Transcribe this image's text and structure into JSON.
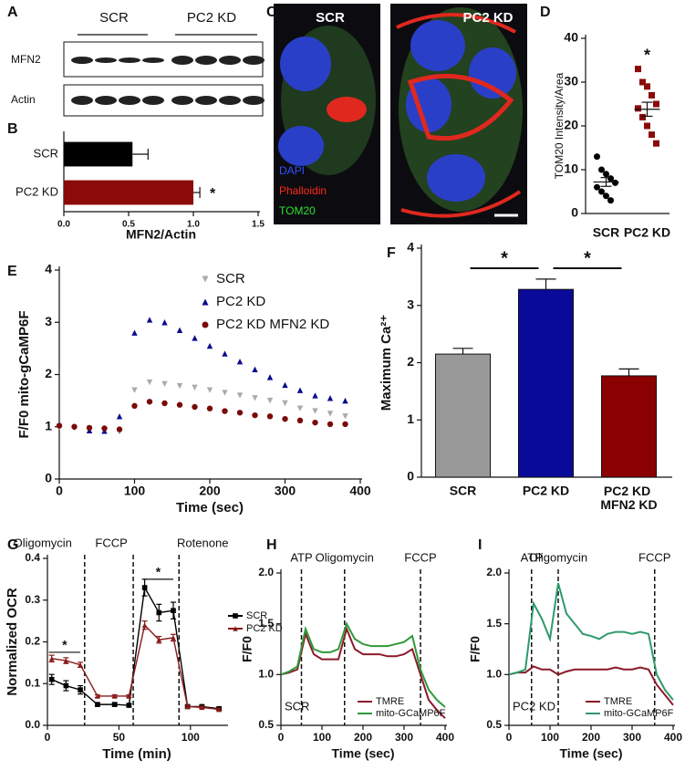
{
  "panel_labels": [
    "A",
    "B",
    "C",
    "D",
    "E",
    "F",
    "G",
    "H",
    "I"
  ],
  "blot": {
    "groups": [
      "SCR",
      "PC2 KD"
    ],
    "rows": [
      "MFN2",
      "Actin"
    ]
  },
  "micro": {
    "panels": [
      "SCR",
      "PC2 KD"
    ],
    "stains": [
      "DAPI",
      "Phalloidin",
      "TOM20"
    ]
  },
  "chart_data": [
    {
      "type": "hbar",
      "categories": [
        "SCR",
        "PC2 KD"
      ],
      "values": [
        0.53,
        1.0
      ],
      "errors": [
        0.12,
        0.05
      ],
      "colors": [
        "#000000",
        "#8b0a0a"
      ],
      "xlim": [
        0,
        1.5
      ],
      "xticks": [
        {
          "value": 0,
          "label": "0.0"
        },
        0.5,
        {
          "value": 1,
          "label": "1.0"
        },
        1.5
      ],
      "xlabel": "MFN2/Actin",
      "annotations": [
        "*"
      ]
    },
    {
      "type": "strip",
      "categories": [
        "SCR",
        "PC2 KD"
      ],
      "values": [
        [
          13,
          10,
          9,
          8,
          7,
          6,
          5,
          4,
          3
        ],
        [
          33,
          30,
          29,
          27,
          25,
          24,
          22,
          20,
          18,
          16
        ]
      ],
      "means": [
        7.2,
        23.8
      ],
      "sems": [
        1.0,
        1.6
      ],
      "colors": [
        "#000000",
        "#8b0a0a"
      ],
      "markers": [
        "circle",
        "square"
      ],
      "ylim": [
        0,
        40
      ],
      "yticks": [
        0,
        10,
        20,
        30,
        40
      ],
      "ylabel": "TOM20 Intensity/Area",
      "annotations": [
        "*"
      ]
    },
    {
      "type": "line",
      "lines": false,
      "x": [
        0,
        20,
        40,
        60,
        80,
        100,
        120,
        140,
        160,
        180,
        200,
        220,
        240,
        260,
        280,
        300,
        320,
        340,
        360,
        380
      ],
      "series": [
        {
          "name": "SCR",
          "color": "#aaaaaa",
          "marker": "triangle-down",
          "values": [
            1.0,
            0.98,
            0.95,
            0.92,
            0.9,
            1.7,
            1.85,
            1.82,
            1.78,
            1.75,
            1.7,
            1.65,
            1.6,
            1.55,
            1.5,
            1.45,
            1.35,
            1.3,
            1.25,
            1.2
          ]
        },
        {
          "name": "PC2 KD",
          "color": "#0b0b8c",
          "marker": "triangle",
          "values": [
            null,
            null,
            0.93,
            0.92,
            1.2,
            2.8,
            3.05,
            3.0,
            2.85,
            2.7,
            2.55,
            2.4,
            2.25,
            2.1,
            1.95,
            1.8,
            1.7,
            1.6,
            1.55,
            1.5
          ]
        },
        {
          "name": "PC2 KD MFN2 KD",
          "color": "#7a0a0a",
          "marker": "circle",
          "values": [
            1.02,
            1.0,
            0.98,
            0.97,
            0.95,
            1.4,
            1.48,
            1.45,
            1.42,
            1.38,
            1.35,
            1.3,
            1.27,
            1.22,
            1.2,
            1.15,
            1.12,
            1.08,
            1.05,
            1.05
          ]
        }
      ],
      "xlim": [
        0,
        400
      ],
      "xticks": [
        0,
        100,
        200,
        300,
        400
      ],
      "ylim": [
        0,
        4
      ],
      "yticks": [
        0,
        1,
        2,
        3,
        4
      ],
      "xlabel": "Time (sec)",
      "ylabel": "F/F0 mito-gCaMP6F"
    },
    {
      "type": "bar",
      "categories": [
        "SCR",
        "PC2 KD",
        "PC2 KD MFN2 KD"
      ],
      "values": [
        2.15,
        3.28,
        1.77
      ],
      "errors": [
        0.1,
        0.18,
        0.12
      ],
      "colors": [
        "#999999",
        "#0a0a9a",
        "#8b0000"
      ],
      "ylim": [
        0,
        4
      ],
      "yticks": [
        0,
        1,
        2,
        3,
        4
      ],
      "ylabel": "Maximum Ca²⁺",
      "annotations": [
        "*",
        "*"
      ]
    },
    {
      "type": "line",
      "lines": true,
      "x": [
        3,
        13,
        23,
        35,
        47,
        57,
        68,
        78,
        88,
        98,
        108,
        120
      ],
      "series": [
        {
          "name": "SCR",
          "color": "#000000",
          "marker": "square",
          "values": [
            0.11,
            0.095,
            0.085,
            0.05,
            0.05,
            0.048,
            0.33,
            0.27,
            0.275,
            0.045,
            0.045,
            0.04
          ],
          "errors": [
            0.012,
            0.012,
            0.01,
            0.004,
            0.004,
            0.004,
            0.02,
            0.02,
            0.02,
            0.003,
            0.003,
            0.003
          ]
        },
        {
          "name": "PC2 KD",
          "color": "#8b1a1a",
          "marker": "triangle",
          "values": [
            0.16,
            0.155,
            0.145,
            0.07,
            0.07,
            0.07,
            0.24,
            0.205,
            0.21,
            0.045,
            0.043,
            0.038
          ],
          "errors": [
            0.008,
            0.007,
            0.006,
            0.003,
            0.003,
            0.003,
            0.01,
            0.008,
            0.008,
            0.003,
            0.003,
            0.003
          ]
        }
      ],
      "events": [
        {
          "x": 26,
          "label": "Oligomycin"
        },
        {
          "x": 60,
          "label": "FCCP"
        },
        {
          "x": 92,
          "label": "Rotenone"
        }
      ],
      "xlim": [
        0,
        125
      ],
      "xticks": [
        0,
        50,
        100
      ],
      "ylim": [
        0,
        0.4
      ],
      "yticks": [
        {
          "value": 0,
          "label": "0.0"
        },
        0.1,
        0.2,
        0.3,
        0.4
      ],
      "xlabel": "Time (min)",
      "ylabel": "Normalized OCR",
      "annotations": [
        "*",
        "*"
      ]
    },
    {
      "type": "line",
      "lines": true,
      "inset": "SCR",
      "x": [
        0,
        20,
        40,
        60,
        80,
        100,
        120,
        140,
        160,
        180,
        200,
        220,
        240,
        260,
        280,
        300,
        320,
        340,
        360,
        380,
        400
      ],
      "series": [
        {
          "name": "TMRE",
          "color": "#8b1a2a",
          "values": [
            1.0,
            1.02,
            1.05,
            1.4,
            1.2,
            1.15,
            1.15,
            1.15,
            1.45,
            1.25,
            1.2,
            1.2,
            1.2,
            1.18,
            1.18,
            1.2,
            1.25,
            1.0,
            0.75,
            0.65,
            0.57
          ]
        },
        {
          "name": "mito-GCaMP6F",
          "color": "#2e9a3a",
          "values": [
            1.0,
            1.03,
            1.08,
            1.45,
            1.25,
            1.22,
            1.22,
            1.25,
            1.5,
            1.35,
            1.3,
            1.28,
            1.28,
            1.28,
            1.3,
            1.32,
            1.38,
            1.05,
            0.85,
            0.75,
            0.68
          ]
        }
      ],
      "events": [
        {
          "x": 50,
          "label": "ATP"
        },
        {
          "x": 155,
          "label": "Oligomycin"
        },
        {
          "x": 340,
          "label": "FCCP"
        }
      ],
      "xlim": [
        0,
        400
      ],
      "xticks": [
        0,
        100,
        200,
        300,
        400
      ],
      "ylim": [
        0.5,
        2.0
      ],
      "yticks": [
        0.5,
        {
          "value": 1,
          "label": "1.0"
        },
        1.5,
        {
          "value": 2,
          "label": "2.0"
        }
      ],
      "xlabel": "Time (sec)",
      "ylabel": "F/F0"
    },
    {
      "type": "line",
      "lines": true,
      "inset": "PC2 KD",
      "x": [
        0,
        20,
        40,
        60,
        80,
        100,
        120,
        140,
        160,
        180,
        200,
        220,
        240,
        260,
        280,
        300,
        320,
        340,
        360,
        380,
        400
      ],
      "series": [
        {
          "name": "TMRE",
          "color": "#8b1a2a",
          "values": [
            1.0,
            1.02,
            1.02,
            1.08,
            1.05,
            1.05,
            1.0,
            1.03,
            1.05,
            1.05,
            1.05,
            1.05,
            1.05,
            1.07,
            1.05,
            1.05,
            1.07,
            1.05,
            0.9,
            0.8,
            0.7
          ]
        },
        {
          "name": "mito-GCaMP6F",
          "color": "#2e9a6a",
          "values": [
            1.0,
            1.02,
            1.05,
            1.7,
            1.55,
            1.35,
            1.9,
            1.6,
            1.5,
            1.4,
            1.38,
            1.35,
            1.4,
            1.42,
            1.42,
            1.4,
            1.42,
            1.4,
            1.0,
            0.85,
            0.75
          ]
        }
      ],
      "events": [
        {
          "x": 55,
          "label": "ATP"
        },
        {
          "x": 120,
          "label": "Oligomycin"
        },
        {
          "x": 355,
          "label": "FCCP"
        }
      ],
      "xlim": [
        0,
        400
      ],
      "xticks": [
        0,
        100,
        200,
        300,
        400
      ],
      "ylim": [
        0.5,
        2.0
      ],
      "yticks": [
        0.5,
        {
          "value": 1,
          "label": "1.0"
        },
        1.5,
        {
          "value": 2,
          "label": "2.0"
        }
      ],
      "xlabel": "Time (sec)",
      "ylabel": "F/F0"
    }
  ]
}
